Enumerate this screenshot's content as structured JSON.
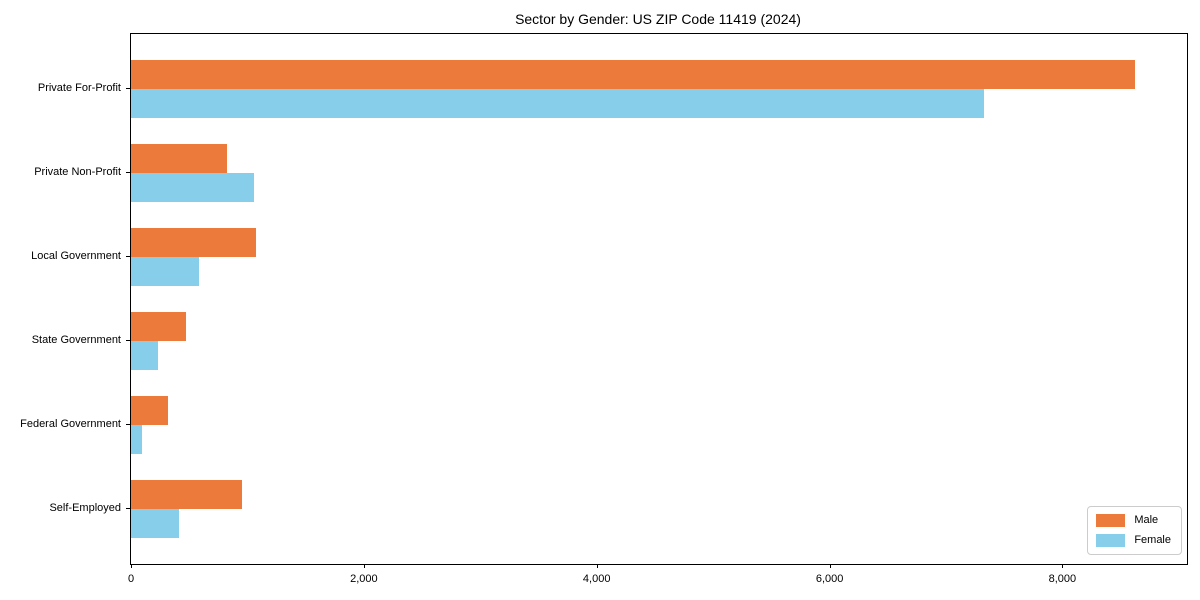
{
  "chart_data": {
    "type": "bar",
    "orientation": "horizontal_grouped",
    "title": "Sector by Gender: US ZIP Code 11419 (2024)",
    "categories": [
      "Private For-Profit",
      "Private Non-Profit",
      "Local Government",
      "State Government",
      "Federal Government",
      "Self-Employed"
    ],
    "series": [
      {
        "name": "Male",
        "color": "#EB7A3B",
        "values": [
          8620,
          820,
          1070,
          470,
          320,
          950
        ]
      },
      {
        "name": "Female",
        "color": "#87CEEB",
        "values": [
          7330,
          1060,
          580,
          230,
          90,
          410
        ]
      }
    ],
    "xlim": [
      0,
      9070
    ],
    "xticks": [
      {
        "value": 0,
        "label": "0"
      },
      {
        "value": 2000,
        "label": "2,000"
      },
      {
        "value": 4000,
        "label": "4,000"
      },
      {
        "value": 6000,
        "label": "6,000"
      },
      {
        "value": 8000,
        "label": "8,000"
      }
    ],
    "xlabel": "",
    "ylabel": "",
    "grid": false,
    "legend": {
      "position": "lower right",
      "entries": [
        "Male",
        "Female"
      ]
    },
    "frame": "full-border",
    "background_color": "#ffffff",
    "text_color": "#000000"
  }
}
